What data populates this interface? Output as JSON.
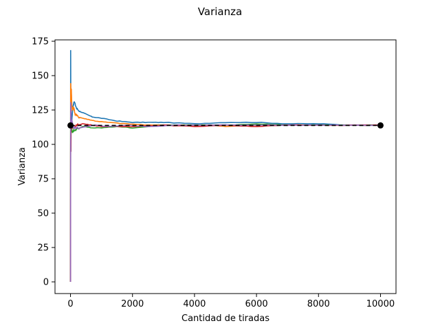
{
  "chart_data": {
    "type": "line",
    "title": "Varianza",
    "xlabel": "Cantidad de tiradas",
    "ylabel": "Varianza",
    "xlim": [
      -500,
      10500
    ],
    "ylim": [
      -8.5,
      176
    ],
    "xticks": [
      0,
      2000,
      4000,
      6000,
      8000,
      10000
    ],
    "xtick_labels": [
      "0",
      "2000",
      "4000",
      "6000",
      "8000",
      "10000"
    ],
    "yticks": [
      0,
      25,
      50,
      75,
      100,
      125,
      150,
      175
    ],
    "ytick_labels": [
      "0",
      "25",
      "50",
      "75",
      "100",
      "125",
      "150",
      "175"
    ],
    "grid": false,
    "reference_line": {
      "y": 113.8,
      "x": [
        0,
        10000
      ],
      "color": "#000000",
      "style": "dashed"
    },
    "reference_points": [
      {
        "x": 0,
        "y": 113.8,
        "color": "#000000"
      },
      {
        "x": 10000,
        "y": 113.8,
        "color": "#000000"
      }
    ],
    "series": [
      {
        "color": "#1f77b4",
        "x": [
          1,
          5,
          15,
          20,
          30,
          50,
          80,
          120,
          200,
          300,
          500,
          700,
          1000,
          1500,
          2000,
          2500,
          3000,
          4000,
          5000,
          6000,
          7000,
          8000,
          9000,
          10000
        ],
        "y": [
          0,
          168,
          95,
          125,
          110,
          120,
          128,
          131,
          126,
          124,
          122,
          120,
          119,
          117,
          116,
          116,
          116,
          115,
          116,
          116,
          115,
          115,
          114,
          114
        ]
      },
      {
        "color": "#ff7f0e",
        "x": [
          1,
          5,
          15,
          25,
          40,
          60,
          100,
          150,
          250,
          400,
          600,
          800,
          1200,
          1800,
          2500,
          3500,
          4500,
          5000,
          6000,
          7000,
          8000,
          9000,
          10000
        ],
        "y": [
          0,
          145,
          138,
          141,
          130,
          125,
          127,
          122,
          120,
          119,
          118,
          117,
          116,
          115,
          114,
          114,
          114,
          113,
          114,
          114,
          114,
          114,
          114
        ]
      },
      {
        "color": "#2ca02c",
        "x": [
          1,
          5,
          15,
          30,
          60,
          100,
          200,
          400,
          700,
          1000,
          1500,
          2000,
          3000,
          4000,
          5000,
          6000,
          7000,
          8000,
          9000,
          10000
        ],
        "y": [
          0,
          120,
          108,
          112,
          109,
          110,
          111,
          113,
          112,
          112,
          113,
          112,
          114,
          114,
          114,
          115,
          114,
          114,
          114,
          114
        ]
      },
      {
        "color": "#d62728",
        "x": [
          1,
          5,
          12,
          20,
          35,
          60,
          100,
          200,
          400,
          700,
          1000,
          1500,
          2000,
          3000,
          4000,
          5000,
          6000,
          7000,
          8000,
          9000,
          10000
        ],
        "y": [
          0,
          100,
          95,
          118,
          114,
          112,
          113,
          114,
          115,
          114,
          113,
          113,
          113,
          114,
          113,
          114,
          113,
          114,
          114,
          114,
          114
        ]
      },
      {
        "color": "#9467bd",
        "x": [
          1,
          3,
          8,
          15,
          25,
          45,
          80,
          150,
          300,
          500,
          800,
          1200,
          1800,
          2500,
          3500,
          4500,
          5500,
          6500,
          7500,
          8500,
          10000
        ],
        "y": [
          0,
          78,
          130,
          124,
          116,
          118,
          113,
          112,
          112,
          113,
          114,
          113,
          114,
          113,
          114,
          114,
          114,
          114,
          114,
          114,
          114
        ]
      }
    ]
  }
}
